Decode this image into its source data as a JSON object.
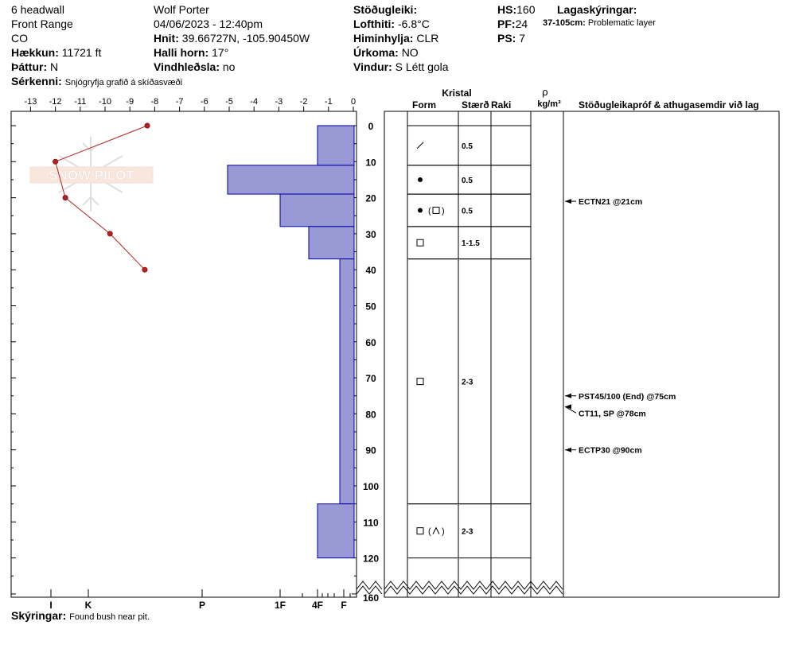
{
  "header": {
    "location": "6 headwall",
    "region": "Front Range",
    "state": "CO",
    "elevation_label": "Hækkun:",
    "elevation_value": "11721 ft",
    "aspect_label": "Þáttur:",
    "aspect_value": "N",
    "observer": "Wolf Porter",
    "datetime": "04/06/2023 - 12:40pm",
    "coords_label": "Hnit:",
    "coords_value": "39.66727N, -105.90450W",
    "slope_label": "Halli horn:",
    "slope_value": "17°",
    "wind_loading_label": "Vindhleðsla:",
    "wind_loading_value": "no",
    "stability_label": "Stöðugleiki:",
    "stability_value": "",
    "air_temp_label": "Lofthiti:",
    "air_temp_value": "-6.8°C",
    "sky_label": "Himinhylja:",
    "sky_value": "CLR",
    "precip_label": "Úrkoma:",
    "precip_value": "NO",
    "wind_label": "Vindur:",
    "wind_value": "S Létt gola",
    "hs_label": "HS:",
    "hs_value": "160",
    "pf_label": "PF:",
    "pf_value": "24",
    "ps_label": "PS:",
    "ps_value": "7",
    "legend_label": "Lagaskýringar:",
    "legend_range": "37-105cm:",
    "legend_text": "Problematic layer",
    "features_label": "Sérkenni:",
    "features_value": "Snjógryfja grafið á skíðasvæði"
  },
  "footer": {
    "comments_label": "Skýringar:",
    "comments_value": "Found bush near pit."
  },
  "watermark": "SNOW PILOT",
  "columns": {
    "crystal": "Kristal",
    "form": "Form",
    "size": "Stærð",
    "moisture": "Raki",
    "rho": "ρ",
    "density_unit": "kg/m³",
    "tests": "Stöðugleikapróf & athugasemdir við lag"
  },
  "colors": {
    "hardness_fill": "#9999d6",
    "hardness_stroke": "#0000aa",
    "temp_line": "#b22222"
  },
  "chart_data": {
    "type": "bar",
    "temperature_axis": {
      "ticks": [
        -13,
        -12,
        -11,
        -10,
        -9,
        -8,
        -7,
        -6,
        -5,
        -4,
        -3,
        -2,
        -1,
        0
      ]
    },
    "depth_axis": {
      "ticks": [
        0,
        10,
        20,
        30,
        40,
        50,
        60,
        70,
        80,
        90,
        100,
        110,
        120,
        160
      ]
    },
    "hardness_axis": {
      "ticks": [
        "I",
        "K",
        "P",
        "1F",
        "4F",
        "F"
      ]
    },
    "hardness_profile": [
      {
        "top": 0,
        "bottom": 11,
        "hardness": "4F"
      },
      {
        "top": 11,
        "bottom": 19,
        "hardness": "P-"
      },
      {
        "top": 19,
        "bottom": 28,
        "hardness": "1F"
      },
      {
        "top": 28,
        "bottom": 37,
        "hardness": "1F-"
      },
      {
        "top": 37,
        "bottom": 105,
        "hardness": "F+"
      },
      {
        "top": 105,
        "bottom": 120,
        "hardness": "4F"
      }
    ],
    "temperature_profile": [
      {
        "depth": 0,
        "temp": -8.3
      },
      {
        "depth": 10,
        "temp": -12.0
      },
      {
        "depth": 20,
        "temp": -11.6
      },
      {
        "depth": 30,
        "temp": -9.8
      },
      {
        "depth": 40,
        "temp": -8.4
      }
    ],
    "layers": [
      {
        "top": 0,
        "bottom": 11,
        "form": "DF",
        "size": "0.5"
      },
      {
        "top": 11,
        "bottom": 19,
        "form": "RG",
        "size": "0.5"
      },
      {
        "top": 19,
        "bottom": 28,
        "form": "RG (FC)",
        "size": "0.5"
      },
      {
        "top": 28,
        "bottom": 37,
        "form": "FC",
        "size": "1-1.5"
      },
      {
        "top": 37,
        "bottom": 105,
        "form": "FC",
        "size": "2-3"
      },
      {
        "top": 105,
        "bottom": 120,
        "form": "FC (DH)",
        "size": "2-3"
      }
    ],
    "tests": [
      {
        "depth": 21,
        "label": "ECTN21 @21cm"
      },
      {
        "depth": 75,
        "label": "PST45/100 (End) @75cm"
      },
      {
        "depth": 78,
        "label": "CT11, SP @78cm"
      },
      {
        "depth": 90,
        "label": "ECTP30 @90cm"
      }
    ]
  }
}
